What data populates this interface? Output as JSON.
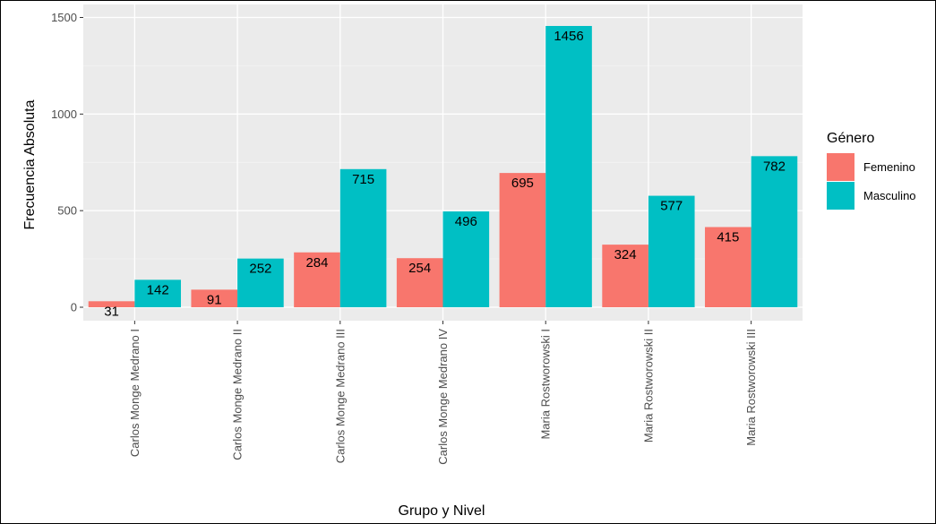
{
  "chart_data": {
    "type": "bar",
    "title": "",
    "xlabel": "Grupo y Nivel",
    "ylabel": "Frecuencia Absoluta",
    "ylim": [
      -70,
      1510
    ],
    "yticks": [
      0,
      500,
      1000,
      1500
    ],
    "yticklabels": [
      "0",
      "500",
      "1000",
      "1500"
    ],
    "categories": [
      "Carlos Monge Medrano I",
      "Carlos Monge Medrano II",
      "Carlos Monge Medrano III",
      "Carlos Monge Medrano IV",
      "Maria Rostworowski I",
      "Maria Rostworowski II",
      "Maria Rostworowski III"
    ],
    "series": [
      {
        "name": "Femenino",
        "color": "#F8766D",
        "values": [
          31,
          91,
          284,
          254,
          695,
          324,
          415
        ]
      },
      {
        "name": "Masculino",
        "color": "#00BFC4",
        "values": [
          142,
          252,
          715,
          496,
          1456,
          577,
          782
        ]
      }
    ],
    "legend": {
      "title": "Género",
      "position": "right"
    },
    "grid": true,
    "background": "#EBEBEB"
  }
}
